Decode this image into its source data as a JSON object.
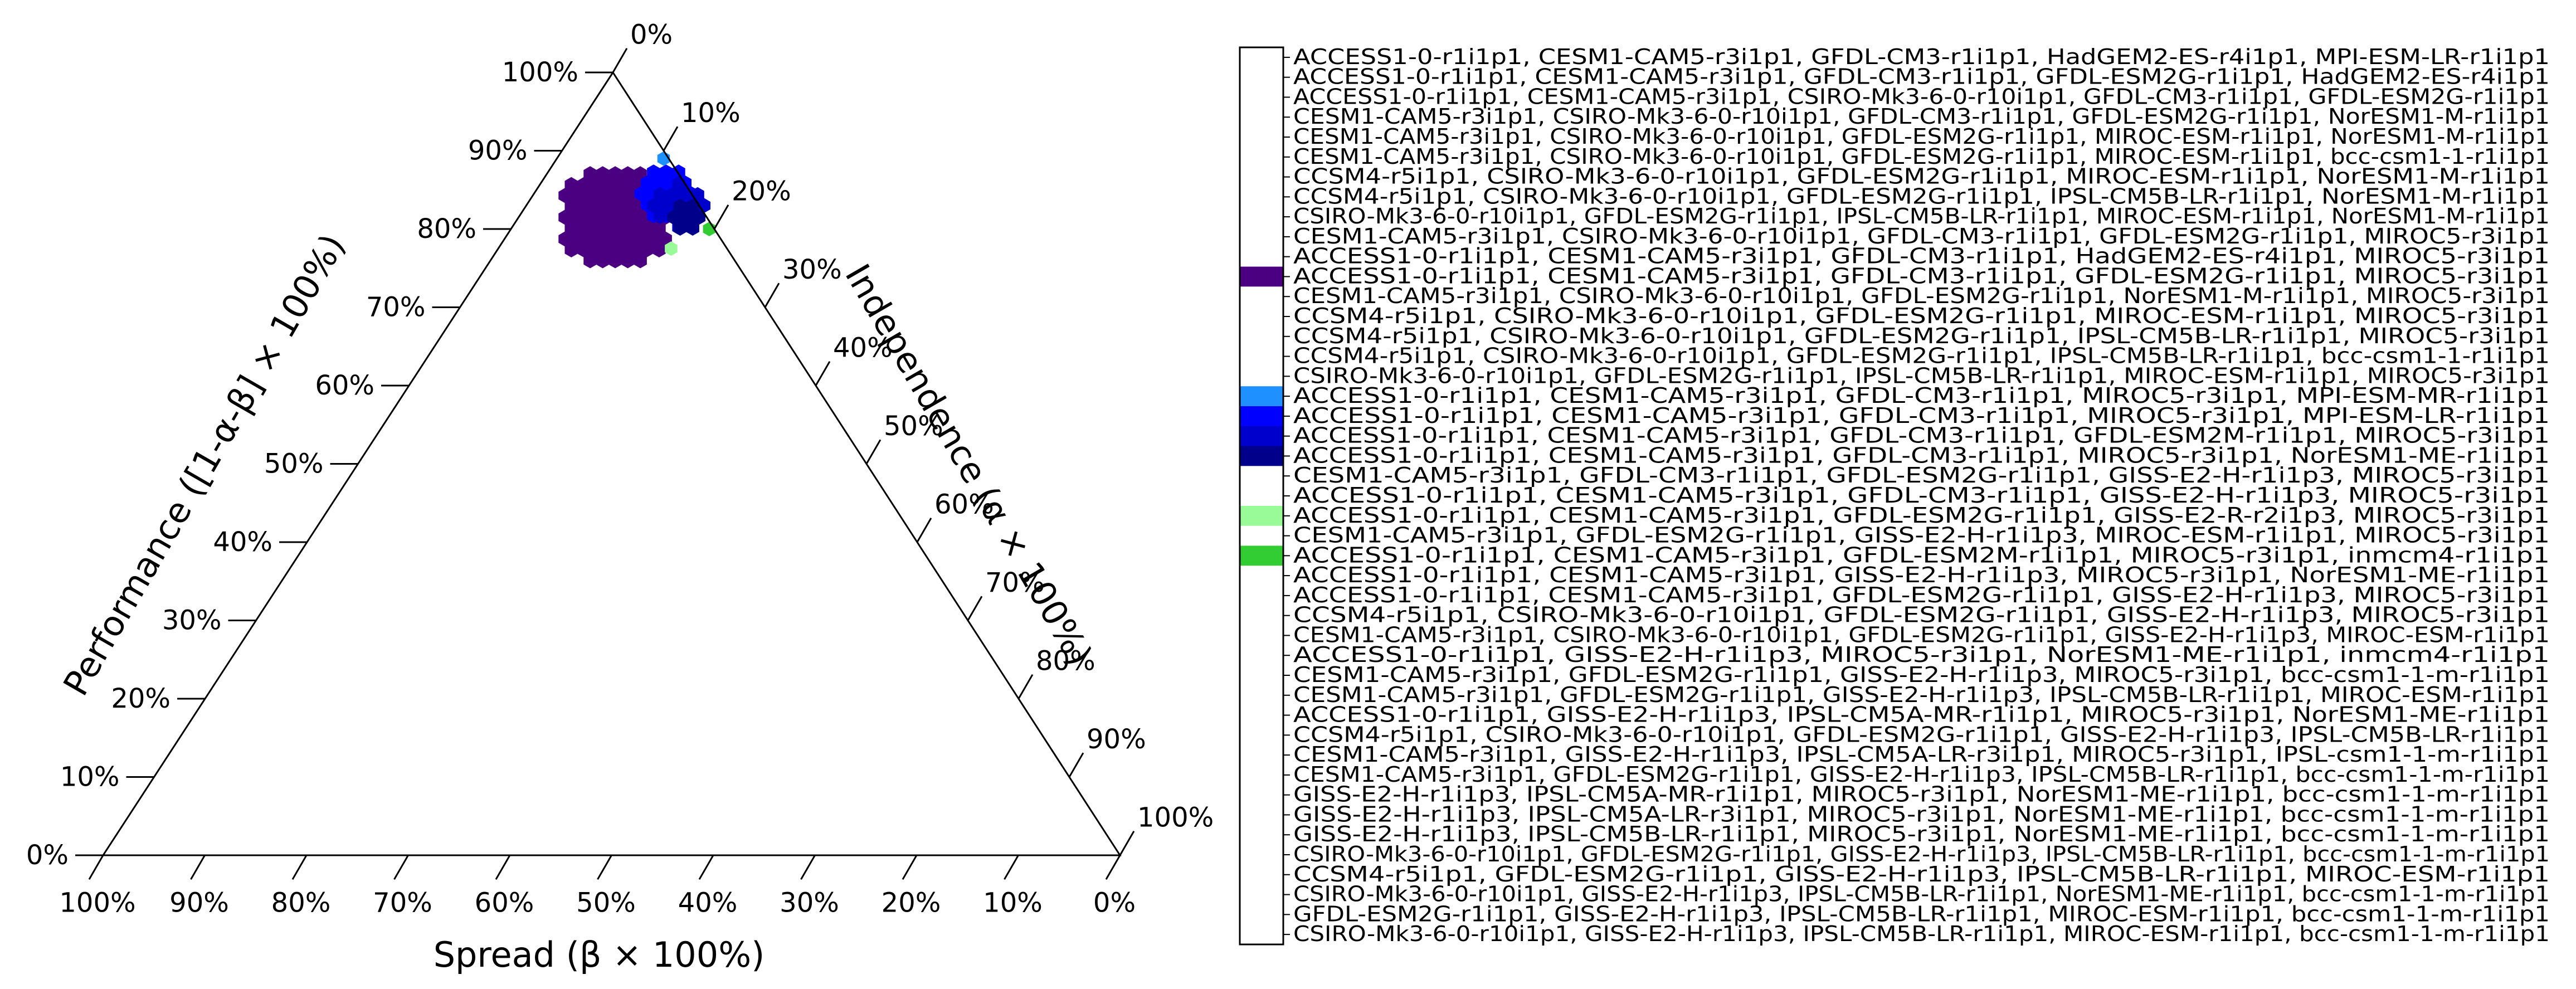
{
  "chart_data": {
    "type": "ternary-hexbin",
    "axes": {
      "left": {
        "label": "Performance ([1-α-β] × 100%)",
        "range": [
          0,
          100
        ]
      },
      "right": {
        "label": "Independence (α × 100%)",
        "range": [
          0,
          100
        ]
      },
      "bottom": {
        "label": "Spread  (β × 100%)",
        "range": [
          100,
          0
        ]
      }
    },
    "ticks": {
      "left": [
        "0%",
        "10%",
        "20%",
        "30%",
        "40%",
        "50%",
        "60%",
        "70%",
        "80%",
        "90%",
        "100%"
      ],
      "right": [
        "0%",
        "10%",
        "20%",
        "30%",
        "40%",
        "50%",
        "60%",
        "70%",
        "80%",
        "90%",
        "100%"
      ],
      "bottom": [
        "100%",
        "90%",
        "80%",
        "70%",
        "60%",
        "50%",
        "40%",
        "30%",
        "20%",
        "10%",
        "0%"
      ]
    },
    "colors": {
      "c1": "#4B0082",
      "c2": "#1E90FF",
      "c3": "#0000FF",
      "c4": "#0000CD",
      "c5": "#00008B",
      "c6": "#98FB98",
      "c7": "#32CD32",
      "empty": "#FFFFFF"
    },
    "regions": [
      {
        "color": "c1",
        "performance_center": 81.5,
        "independence_center": 9.5,
        "radius": 5.5
      },
      {
        "color": "c3",
        "performance_center": 84.5,
        "independence_center": 13.0,
        "radius": 3.0
      },
      {
        "color": "c4",
        "performance_center": 83.0,
        "independence_center": 15.0,
        "radius": 2.5
      },
      {
        "color": "c5",
        "performance_center": 81.5,
        "independence_center": 16.5,
        "radius": 1.6
      }
    ],
    "points": [
      {
        "color": "c2",
        "performance": 89.0,
        "independence": 10.5
      },
      {
        "color": "c7",
        "performance": 80.0,
        "independence": 19.5
      },
      {
        "color": "c6",
        "performance": 77.5,
        "independence": 17.0
      }
    ],
    "legend": [
      {
        "color": "empty",
        "label": "ACCESS1-0-r1i1p1, CESM1-CAM5-r3i1p1, GFDL-CM3-r1i1p1, HadGEM2-ES-r4i1p1, MPI-ESM-LR-r1i1p1"
      },
      {
        "color": "empty",
        "label": "ACCESS1-0-r1i1p1, CESM1-CAM5-r3i1p1, GFDL-CM3-r1i1p1, GFDL-ESM2G-r1i1p1, HadGEM2-ES-r4i1p1"
      },
      {
        "color": "empty",
        "label": "ACCESS1-0-r1i1p1, CESM1-CAM5-r3i1p1, CSIRO-Mk3-6-0-r10i1p1, GFDL-CM3-r1i1p1, GFDL-ESM2G-r1i1p1"
      },
      {
        "color": "empty",
        "label": "CESM1-CAM5-r3i1p1, CSIRO-Mk3-6-0-r10i1p1, GFDL-CM3-r1i1p1, GFDL-ESM2G-r1i1p1, NorESM1-M-r1i1p1"
      },
      {
        "color": "empty",
        "label": "CESM1-CAM5-r3i1p1, CSIRO-Mk3-6-0-r10i1p1, GFDL-ESM2G-r1i1p1, MIROC-ESM-r1i1p1, NorESM1-M-r1i1p1"
      },
      {
        "color": "empty",
        "label": "CESM1-CAM5-r3i1p1, CSIRO-Mk3-6-0-r10i1p1, GFDL-ESM2G-r1i1p1, MIROC-ESM-r1i1p1, bcc-csm1-1-r1i1p1"
      },
      {
        "color": "empty",
        "label": "CCSM4-r5i1p1, CSIRO-Mk3-6-0-r10i1p1, GFDL-ESM2G-r1i1p1, MIROC-ESM-r1i1p1, NorESM1-M-r1i1p1"
      },
      {
        "color": "empty",
        "label": "CCSM4-r5i1p1, CSIRO-Mk3-6-0-r10i1p1, GFDL-ESM2G-r1i1p1, IPSL-CM5B-LR-r1i1p1, NorESM1-M-r1i1p1"
      },
      {
        "color": "empty",
        "label": "CSIRO-Mk3-6-0-r10i1p1, GFDL-ESM2G-r1i1p1, IPSL-CM5B-LR-r1i1p1, MIROC-ESM-r1i1p1, NorESM1-M-r1i1p1"
      },
      {
        "color": "empty",
        "label": "CESM1-CAM5-r3i1p1, CSIRO-Mk3-6-0-r10i1p1, GFDL-CM3-r1i1p1, GFDL-ESM2G-r1i1p1, MIROC5-r3i1p1"
      },
      {
        "color": "empty",
        "label": "ACCESS1-0-r1i1p1, CESM1-CAM5-r3i1p1, GFDL-CM3-r1i1p1, HadGEM2-ES-r4i1p1, MIROC5-r3i1p1"
      },
      {
        "color": "c1",
        "label": "ACCESS1-0-r1i1p1, CESM1-CAM5-r3i1p1, GFDL-CM3-r1i1p1, GFDL-ESM2G-r1i1p1, MIROC5-r3i1p1"
      },
      {
        "color": "empty",
        "label": "CESM1-CAM5-r3i1p1, CSIRO-Mk3-6-0-r10i1p1, GFDL-ESM2G-r1i1p1, NorESM1-M-r1i1p1, MIROC5-r3i1p1"
      },
      {
        "color": "empty",
        "label": "CCSM4-r5i1p1, CSIRO-Mk3-6-0-r10i1p1, GFDL-ESM2G-r1i1p1, MIROC-ESM-r1i1p1, MIROC5-r3i1p1"
      },
      {
        "color": "empty",
        "label": "CCSM4-r5i1p1, CSIRO-Mk3-6-0-r10i1p1, GFDL-ESM2G-r1i1p1, IPSL-CM5B-LR-r1i1p1, MIROC5-r3i1p1"
      },
      {
        "color": "empty",
        "label": "CCSM4-r5i1p1, CSIRO-Mk3-6-0-r10i1p1, GFDL-ESM2G-r1i1p1, IPSL-CM5B-LR-r1i1p1, bcc-csm1-1-r1i1p1"
      },
      {
        "color": "empty",
        "label": "CSIRO-Mk3-6-0-r10i1p1, GFDL-ESM2G-r1i1p1, IPSL-CM5B-LR-r1i1p1, MIROC-ESM-r1i1p1, MIROC5-r3i1p1"
      },
      {
        "color": "c2",
        "label": "ACCESS1-0-r1i1p1, CESM1-CAM5-r3i1p1, GFDL-CM3-r1i1p1, MIROC5-r3i1p1, MPI-ESM-MR-r1i1p1"
      },
      {
        "color": "c3",
        "label": "ACCESS1-0-r1i1p1, CESM1-CAM5-r3i1p1, GFDL-CM3-r1i1p1, MIROC5-r3i1p1, MPI-ESM-LR-r1i1p1"
      },
      {
        "color": "c4",
        "label": "ACCESS1-0-r1i1p1, CESM1-CAM5-r3i1p1, GFDL-CM3-r1i1p1, GFDL-ESM2M-r1i1p1, MIROC5-r3i1p1"
      },
      {
        "color": "c5",
        "label": "ACCESS1-0-r1i1p1, CESM1-CAM5-r3i1p1, GFDL-CM3-r1i1p1, MIROC5-r3i1p1, NorESM1-ME-r1i1p1"
      },
      {
        "color": "empty",
        "label": "CESM1-CAM5-r3i1p1, GFDL-CM3-r1i1p1, GFDL-ESM2G-r1i1p1, GISS-E2-H-r1i1p3, MIROC5-r3i1p1"
      },
      {
        "color": "empty",
        "label": "ACCESS1-0-r1i1p1, CESM1-CAM5-r3i1p1, GFDL-CM3-r1i1p1, GISS-E2-H-r1i1p3, MIROC5-r3i1p1"
      },
      {
        "color": "c6",
        "label": "ACCESS1-0-r1i1p1, CESM1-CAM5-r3i1p1, GFDL-ESM2G-r1i1p1, GISS-E2-R-r2i1p3, MIROC5-r3i1p1"
      },
      {
        "color": "empty",
        "label": "CESM1-CAM5-r3i1p1, GFDL-ESM2G-r1i1p1, GISS-E2-H-r1i1p3, MIROC-ESM-r1i1p1, MIROC5-r3i1p1"
      },
      {
        "color": "c7",
        "label": "ACCESS1-0-r1i1p1, CESM1-CAM5-r3i1p1, GFDL-ESM2M-r1i1p1, MIROC5-r3i1p1, inmcm4-r1i1p1"
      },
      {
        "color": "empty",
        "label": "ACCESS1-0-r1i1p1, CESM1-CAM5-r3i1p1, GISS-E2-H-r1i1p3, MIROC5-r3i1p1, NorESM1-ME-r1i1p1"
      },
      {
        "color": "empty",
        "label": "ACCESS1-0-r1i1p1, CESM1-CAM5-r3i1p1, GFDL-ESM2G-r1i1p1, GISS-E2-H-r1i1p3, MIROC5-r3i1p1"
      },
      {
        "color": "empty",
        "label": "CCSM4-r5i1p1, CSIRO-Mk3-6-0-r10i1p1, GFDL-ESM2G-r1i1p1, GISS-E2-H-r1i1p3, MIROC5-r3i1p1"
      },
      {
        "color": "empty",
        "label": "CESM1-CAM5-r3i1p1, CSIRO-Mk3-6-0-r10i1p1, GFDL-ESM2G-r1i1p1, GISS-E2-H-r1i1p3, MIROC-ESM-r1i1p1"
      },
      {
        "color": "empty",
        "label": "ACCESS1-0-r1i1p1, GISS-E2-H-r1i1p3, MIROC5-r3i1p1, NorESM1-ME-r1i1p1, inmcm4-r1i1p1"
      },
      {
        "color": "empty",
        "label": "CESM1-CAM5-r3i1p1, GFDL-ESM2G-r1i1p1, GISS-E2-H-r1i1p3, MIROC5-r3i1p1, bcc-csm1-1-m-r1i1p1"
      },
      {
        "color": "empty",
        "label": "CESM1-CAM5-r3i1p1, GFDL-ESM2G-r1i1p1, GISS-E2-H-r1i1p3, IPSL-CM5B-LR-r1i1p1, MIROC-ESM-r1i1p1"
      },
      {
        "color": "empty",
        "label": "ACCESS1-0-r1i1p1, GISS-E2-H-r1i1p3, IPSL-CM5A-MR-r1i1p1, MIROC5-r3i1p1, NorESM1-ME-r1i1p1"
      },
      {
        "color": "empty",
        "label": "CCSM4-r5i1p1, CSIRO-Mk3-6-0-r10i1p1, GFDL-ESM2G-r1i1p1, GISS-E2-H-r1i1p3, IPSL-CM5B-LR-r1i1p1"
      },
      {
        "color": "empty",
        "label": "CESM1-CAM5-r3i1p1, GISS-E2-H-r1i1p3, IPSL-CM5A-LR-r3i1p1, MIROC5-r3i1p1, IPSL-csm1-1-m-r1i1p1"
      },
      {
        "color": "empty",
        "label": "CESM1-CAM5-r3i1p1, GFDL-ESM2G-r1i1p1, GISS-E2-H-r1i1p3, IPSL-CM5B-LR-r1i1p1, bcc-csm1-1-m-r1i1p1"
      },
      {
        "color": "empty",
        "label": "GISS-E2-H-r1i1p3, IPSL-CM5A-MR-r1i1p1, MIROC5-r3i1p1, NorESM1-ME-r1i1p1, bcc-csm1-1-m-r1i1p1"
      },
      {
        "color": "empty",
        "label": "GISS-E2-H-r1i1p3, IPSL-CM5A-LR-r3i1p1, MIROC5-r3i1p1, NorESM1-ME-r1i1p1, bcc-csm1-1-m-r1i1p1"
      },
      {
        "color": "empty",
        "label": "GISS-E2-H-r1i1p3, IPSL-CM5B-LR-r1i1p1, MIROC5-r3i1p1, NorESM1-ME-r1i1p1, bcc-csm1-1-m-r1i1p1"
      },
      {
        "color": "empty",
        "label": "CSIRO-Mk3-6-0-r10i1p1, GFDL-ESM2G-r1i1p1, GISS-E2-H-r1i1p3, IPSL-CM5B-LR-r1i1p1, bcc-csm1-1-m-r1i1p1"
      },
      {
        "color": "empty",
        "label": "CCSM4-r5i1p1, GFDL-ESM2G-r1i1p1, GISS-E2-H-r1i1p3, IPSL-CM5B-LR-r1i1p1, MIROC-ESM-r1i1p1"
      },
      {
        "color": "empty",
        "label": "CSIRO-Mk3-6-0-r10i1p1, GISS-E2-H-r1i1p3, IPSL-CM5B-LR-r1i1p1, NorESM1-ME-r1i1p1, bcc-csm1-1-m-r1i1p1"
      },
      {
        "color": "empty",
        "label": "GFDL-ESM2G-r1i1p1, GISS-E2-H-r1i1p3, IPSL-CM5B-LR-r1i1p1, MIROC-ESM-r1i1p1, bcc-csm1-1-m-r1i1p1"
      },
      {
        "color": "empty",
        "label": "CSIRO-Mk3-6-0-r10i1p1, GISS-E2-H-r1i1p3, IPSL-CM5B-LR-r1i1p1, MIROC-ESM-r1i1p1, bcc-csm1-1-m-r1i1p1"
      }
    ]
  }
}
